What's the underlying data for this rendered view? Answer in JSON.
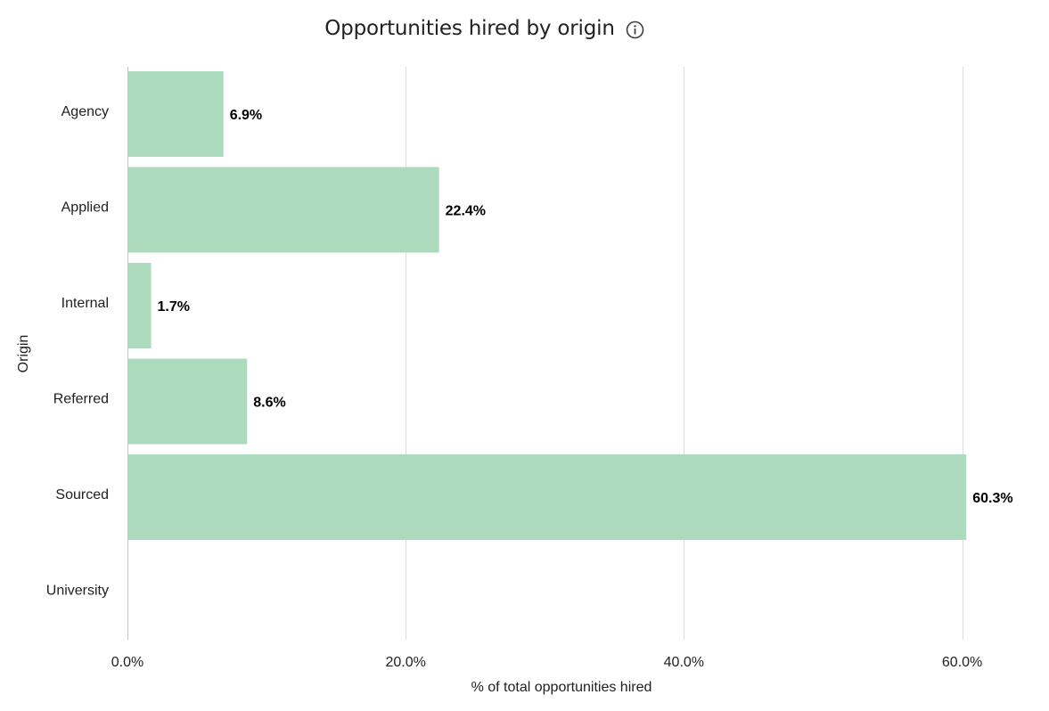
{
  "chart_data": {
    "type": "bar",
    "orientation": "horizontal",
    "title": "Opportunities hired by origin",
    "xlabel": "% of total opportunities hired",
    "ylabel": "Origin",
    "categories": [
      "Agency",
      "Applied",
      "Internal",
      "Referred",
      "Sourced",
      "University"
    ],
    "values": [
      6.9,
      22.4,
      1.7,
      8.6,
      60.3,
      0
    ],
    "value_labels": [
      "6.9%",
      "22.4%",
      "1.7%",
      "8.6%",
      "60.3%",
      ""
    ],
    "xlim": [
      0,
      62.4
    ],
    "x_ticks": [
      0,
      20,
      40,
      60
    ],
    "x_tick_labels": [
      "0.0%",
      "20.0%",
      "40.0%",
      "60.0%"
    ],
    "grid": true,
    "bar_color": "#acdabc",
    "gridline_color": "#dadce0",
    "axis_color": "#a8c7e8",
    "title_icon": "info-icon"
  }
}
